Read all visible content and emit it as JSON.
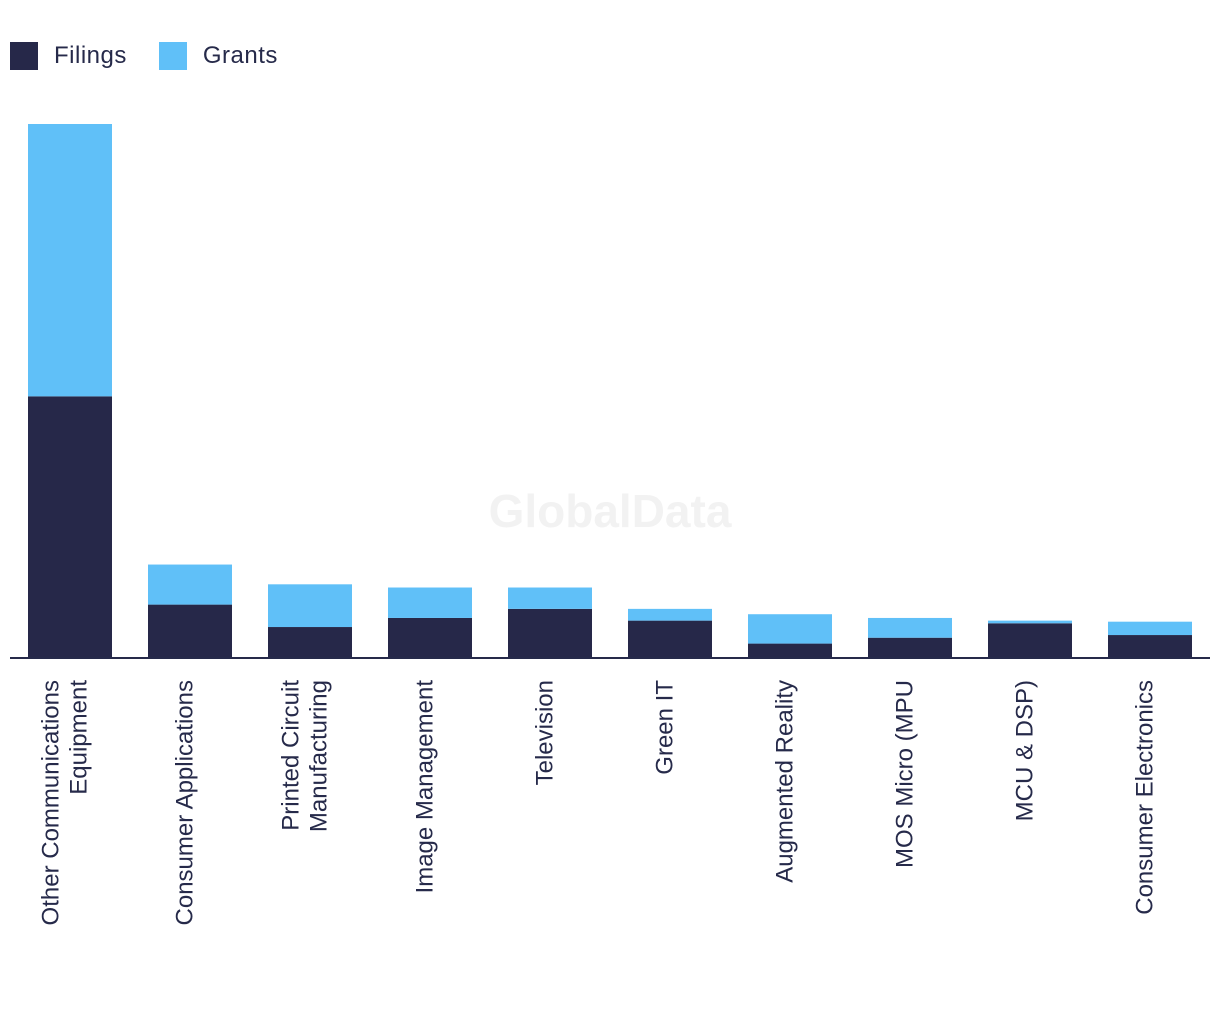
{
  "chart_data": {
    "type": "bar",
    "stacked": true,
    "title": "",
    "xlabel": "",
    "ylabel": "",
    "ylim": [
      0,
      1000
    ],
    "legend_position": "top-left",
    "grid": false,
    "categories": [
      [
        "Other Communications",
        "Equipment"
      ],
      [
        "Consumer Applications"
      ],
      [
        "Printed Circuit",
        "Manufacturing"
      ],
      [
        "Image Management"
      ],
      [
        "Television"
      ],
      [
        "Green IT"
      ],
      [
        "Augmented Reality"
      ],
      [
        "MOS Micro (MPU"
      ],
      [
        "MCU & DSP)"
      ],
      [
        "Consumer Electronics"
      ]
    ],
    "series": [
      {
        "name": "Filings",
        "color": "#262849",
        "values": [
          490,
          100,
          58,
          75,
          92,
          70,
          27,
          38,
          65,
          43
        ]
      },
      {
        "name": "Grants",
        "color": "#60c0f8",
        "values": [
          510,
          75,
          80,
          57,
          40,
          22,
          55,
          37,
          5,
          25
        ]
      }
    ],
    "watermark": "GlobalData"
  }
}
